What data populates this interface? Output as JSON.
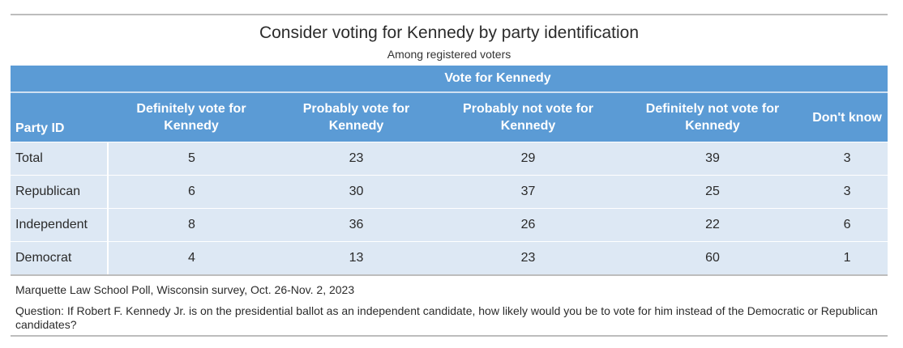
{
  "title": "Consider voting for Kennedy by party identification",
  "subtitle": "Among registered voters",
  "table": {
    "spanner": "Vote for Kennedy",
    "columns": [
      "Party ID",
      "Definitely vote for Kennedy",
      "Probably vote for Kennedy",
      "Probably not vote for Kennedy",
      "Definitely not vote for Kennedy",
      "Don't know"
    ],
    "rows": [
      {
        "label": "Total",
        "values": [
          "5",
          "23",
          "29",
          "39",
          "3"
        ]
      },
      {
        "label": "Republican",
        "values": [
          "6",
          "30",
          "37",
          "25",
          "3"
        ]
      },
      {
        "label": "Independent",
        "values": [
          "8",
          "36",
          "26",
          "22",
          "6"
        ]
      },
      {
        "label": "Democrat",
        "values": [
          "4",
          "13",
          "23",
          "60",
          "1"
        ]
      }
    ]
  },
  "source": "Marquette Law School Poll, Wisconsin survey, Oct. 26-Nov. 2, 2023",
  "question": "Question: If Robert F. Kennedy Jr. is on the presidential ballot as an independent candidate, how likely would you be to vote for him instead of the Democratic or Republican candidates?",
  "colors": {
    "header_bg": "#5b9bd5",
    "header_text": "#ffffff",
    "row_bg": "#dde8f4",
    "rule": "#bdbdbd"
  }
}
